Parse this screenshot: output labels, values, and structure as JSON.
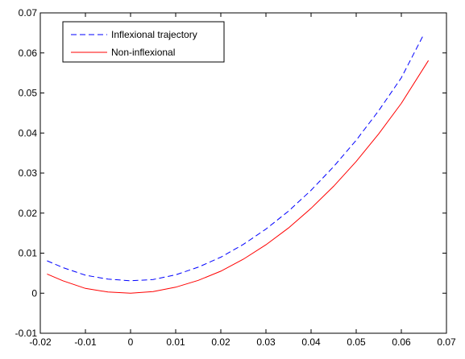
{
  "chart_data": {
    "type": "line",
    "title": "",
    "xlabel": "",
    "ylabel": "",
    "xlim": [
      -0.02,
      0.07
    ],
    "ylim": [
      -0.01,
      0.07
    ],
    "xticks": [
      -0.02,
      -0.01,
      0,
      0.01,
      0.02,
      0.03,
      0.04,
      0.05,
      0.06,
      0.07
    ],
    "xtick_labels": [
      "-0.02",
      "-0.01",
      "0",
      "0.01",
      "0.02",
      "0.03",
      "0.04",
      "0.05",
      "0.06",
      "0.07"
    ],
    "yticks": [
      -0.01,
      0,
      0.01,
      0.02,
      0.03,
      0.04,
      0.05,
      0.06,
      0.07
    ],
    "ytick_labels": [
      "-0.01",
      "0",
      "0.01",
      "0.02",
      "0.03",
      "0.04",
      "0.05",
      "0.06",
      "0.07"
    ],
    "grid": false,
    "legend_position": "top-left",
    "series": [
      {
        "name": "Inflexional trajectory",
        "color": "#0000ff",
        "dash": "dashed",
        "x": [
          -0.0185,
          -0.015,
          -0.01,
          -0.005,
          0,
          0.005,
          0.01,
          0.015,
          0.02,
          0.025,
          0.03,
          0.035,
          0.04,
          0.045,
          0.05,
          0.055,
          0.06,
          0.065
        ],
        "y": [
          0.0081,
          0.0064,
          0.0045,
          0.0035,
          0.0031,
          0.0034,
          0.0046,
          0.0065,
          0.009,
          0.0122,
          0.016,
          0.0205,
          0.0257,
          0.0316,
          0.0382,
          0.0456,
          0.0538,
          0.0647
        ]
      },
      {
        "name": "Non-inflexional",
        "color": "#ff0000",
        "dash": "solid",
        "x": [
          -0.0185,
          -0.015,
          -0.01,
          -0.005,
          0,
          0.005,
          0.01,
          0.015,
          0.02,
          0.025,
          0.03,
          0.035,
          0.04,
          0.045,
          0.05,
          0.055,
          0.06,
          0.066
        ],
        "y": [
          0.0048,
          0.0031,
          0.0012,
          0.0003,
          0.0,
          0.0004,
          0.0015,
          0.0032,
          0.0055,
          0.0085,
          0.0121,
          0.0163,
          0.0212,
          0.0267,
          0.0329,
          0.0398,
          0.0474,
          0.0581
        ]
      }
    ]
  }
}
